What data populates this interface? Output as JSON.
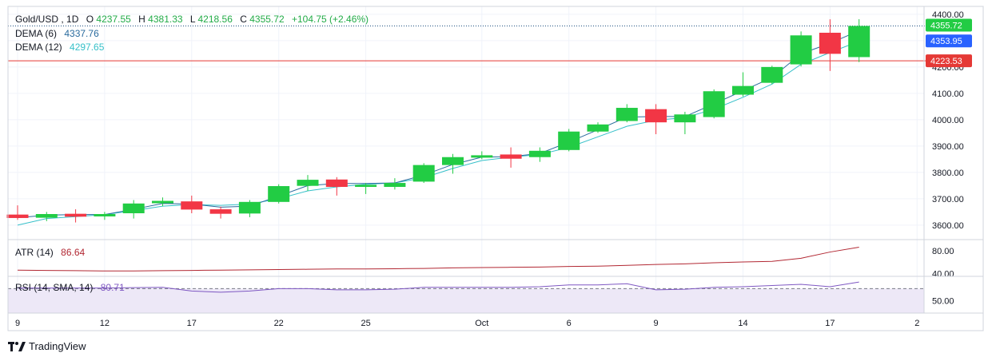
{
  "header": {
    "symbol": "Gold/USD",
    "interval": "1D",
    "open_label": "O",
    "open": "4237.55",
    "high_label": "H",
    "high": "4381.33",
    "low_label": "L",
    "low": "4218.56",
    "close_label": "C",
    "close": "4355.72",
    "change": "+104.75 (+2.46%)"
  },
  "indicators": {
    "dema6_label": "DEMA (6)",
    "dema6_value": "4337.76",
    "dema12_label": "DEMA (12)",
    "dema12_value": "4297.65",
    "atr_label": "ATR (14)",
    "atr_value": "86.64",
    "rsi_label": "RSI (14, SMA, 14)",
    "rsi_value": "80.71"
  },
  "price_tags": {
    "last_price": "4355.72",
    "dema_tag": "4353.95",
    "level_tag": "4223.53"
  },
  "colors": {
    "up": "#22cc44",
    "down": "#f23645",
    "dema6": "#2a6b9e",
    "dema12": "#36c0c9",
    "atr": "#b22833",
    "rsi": "#7e57c2",
    "rsi_band": "#ede8f7",
    "grid": "#f0f3fa",
    "last_line": "#1e4f80",
    "level_line": "#e53935",
    "dema_tag_bg": "#2962ff"
  },
  "brand": "TradingView",
  "chart_data": {
    "type": "candlestick",
    "title": "Gold/USD, 1D",
    "price_axis": {
      "ticks": [
        "3600.00",
        "3700.00",
        "3800.00",
        "3900.00",
        "4000.00",
        "4100.00",
        "4200.00",
        "4300.00",
        "4400.00"
      ],
      "range": [
        3545,
        4430
      ]
    },
    "x_axis": {
      "tick_labels": [
        "9",
        "12",
        "17",
        "22",
        "25",
        "Oct",
        "6",
        "9",
        "14",
        "17",
        "2"
      ],
      "tick_bars": [
        0,
        3,
        6,
        9,
        12,
        16,
        19,
        22,
        25,
        28,
        31
      ]
    },
    "candles": [
      {
        "o": 3640,
        "h": 3675,
        "l": 3620,
        "c": 3627
      },
      {
        "o": 3628,
        "h": 3650,
        "l": 3615,
        "c": 3642
      },
      {
        "o": 3643,
        "h": 3660,
        "l": 3610,
        "c": 3632
      },
      {
        "o": 3633,
        "h": 3650,
        "l": 3620,
        "c": 3642
      },
      {
        "o": 3645,
        "h": 3695,
        "l": 3625,
        "c": 3682
      },
      {
        "o": 3683,
        "h": 3705,
        "l": 3672,
        "c": 3692
      },
      {
        "o": 3690,
        "h": 3712,
        "l": 3645,
        "c": 3659
      },
      {
        "o": 3660,
        "h": 3670,
        "l": 3625,
        "c": 3643
      },
      {
        "o": 3644,
        "h": 3695,
        "l": 3630,
        "c": 3688
      },
      {
        "o": 3688,
        "h": 3755,
        "l": 3682,
        "c": 3748
      },
      {
        "o": 3749,
        "h": 3790,
        "l": 3730,
        "c": 3772
      },
      {
        "o": 3773,
        "h": 3782,
        "l": 3712,
        "c": 3745
      },
      {
        "o": 3745,
        "h": 3760,
        "l": 3718,
        "c": 3753
      },
      {
        "o": 3745,
        "h": 3778,
        "l": 3735,
        "c": 3760
      },
      {
        "o": 3765,
        "h": 3835,
        "l": 3760,
        "c": 3828
      },
      {
        "o": 3828,
        "h": 3870,
        "l": 3795,
        "c": 3858
      },
      {
        "o": 3856,
        "h": 3880,
        "l": 3850,
        "c": 3865
      },
      {
        "o": 3868,
        "h": 3895,
        "l": 3818,
        "c": 3852
      },
      {
        "o": 3858,
        "h": 3895,
        "l": 3840,
        "c": 3882
      },
      {
        "o": 3885,
        "h": 3965,
        "l": 3880,
        "c": 3955
      },
      {
        "o": 3955,
        "h": 3990,
        "l": 3950,
        "c": 3982
      },
      {
        "o": 3995,
        "h": 4059,
        "l": 3990,
        "c": 4045
      },
      {
        "o": 4040,
        "h": 4059,
        "l": 3945,
        "c": 3990
      },
      {
        "o": 3990,
        "h": 4030,
        "l": 3945,
        "c": 4020
      },
      {
        "o": 4010,
        "h": 4115,
        "l": 4005,
        "c": 4108
      },
      {
        "o": 4095,
        "h": 4180,
        "l": 4088,
        "c": 4128
      },
      {
        "o": 4140,
        "h": 4205,
        "l": 4135,
        "c": 4200
      },
      {
        "o": 4210,
        "h": 4335,
        "l": 4202,
        "c": 4320
      },
      {
        "o": 4330,
        "h": 4381,
        "l": 4185,
        "c": 4250
      },
      {
        "o": 4237.55,
        "h": 4381.33,
        "l": 4218.56,
        "c": 4355.72
      }
    ],
    "dema6": [
      3628,
      3638,
      3640,
      3640,
      3660,
      3682,
      3680,
      3668,
      3672,
      3710,
      3750,
      3758,
      3758,
      3760,
      3790,
      3830,
      3858,
      3860,
      3872,
      3915,
      3962,
      4010,
      4012,
      4012,
      4060,
      4110,
      4160,
      4250,
      4290,
      4337.76
    ],
    "dema12": [
      3600,
      3625,
      3632,
      3640,
      3655,
      3672,
      3678,
      3675,
      3680,
      3700,
      3730,
      3745,
      3755,
      3760,
      3780,
      3815,
      3845,
      3858,
      3868,
      3895,
      3935,
      3975,
      3998,
      4008,
      4040,
      4085,
      4135,
      4210,
      4255,
      4297.65
    ],
    "levels": {
      "last_price": 4355.72,
      "dema_tag": 4353.95,
      "horizontal_line": 4223.53
    },
    "atr": {
      "axis_ticks": [
        "40.00",
        "80.00"
      ],
      "range": [
        35,
        100
      ],
      "values": [
        46,
        45.5,
        45,
        44.5,
        44.5,
        45,
        45.5,
        46,
        46.5,
        47,
        47.5,
        48,
        48,
        48.5,
        49,
        50,
        50.5,
        51,
        51.5,
        52.5,
        53,
        54.5,
        56,
        57,
        59,
        60.5,
        61.5,
        67,
        78,
        86.64
      ]
    },
    "rsi": {
      "axis_ticks": [
        "50.00"
      ],
      "range": [
        30,
        90
      ],
      "band": [
        30,
        70
      ],
      "values": [
        71,
        71,
        71,
        71,
        71.5,
        72,
        66,
        64,
        66,
        70,
        70,
        68,
        68,
        69,
        72,
        72,
        72,
        72,
        73,
        76,
        76,
        78,
        68,
        69,
        72,
        73,
        75,
        77,
        73,
        80.71
      ]
    }
  }
}
